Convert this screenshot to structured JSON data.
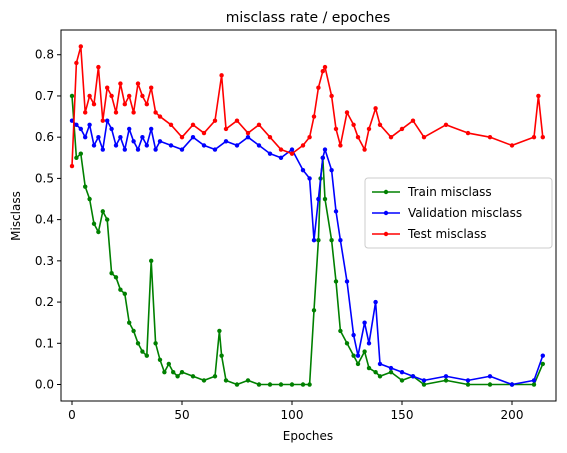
{
  "chart_data": {
    "type": "line",
    "title": "misclass rate / epoches",
    "xlabel": "Epoches",
    "ylabel": "Misclass",
    "xlim": [
      -5,
      220
    ],
    "ylim": [
      -0.04,
      0.86
    ],
    "xticks": [
      0,
      50,
      100,
      150,
      200
    ],
    "yticks": [
      0.0,
      0.1,
      0.2,
      0.3,
      0.4,
      0.5,
      0.6,
      0.7,
      0.8
    ],
    "xtick_labels": [
      "0",
      "50",
      "100",
      "150",
      "200"
    ],
    "ytick_labels": [
      "0.0",
      "0.1",
      "0.2",
      "0.3",
      "0.4",
      "0.5",
      "0.6",
      "0.7",
      "0.8"
    ],
    "legend_position": "center-right",
    "series": [
      {
        "name": "Train misclass",
        "color": "#008000",
        "x": [
          0,
          2,
          4,
          6,
          8,
          10,
          12,
          14,
          16,
          18,
          20,
          22,
          24,
          26,
          28,
          30,
          32,
          34,
          36,
          38,
          40,
          42,
          44,
          46,
          48,
          50,
          55,
          60,
          65,
          67,
          68,
          70,
          75,
          80,
          85,
          90,
          95,
          100,
          105,
          108,
          110,
          112,
          113,
          114,
          115,
          118,
          120,
          122,
          125,
          128,
          130,
          133,
          135,
          138,
          140,
          145,
          150,
          155,
          160,
          170,
          180,
          190,
          200,
          210,
          214
        ],
        "values": [
          0.7,
          0.55,
          0.56,
          0.48,
          0.45,
          0.39,
          0.37,
          0.42,
          0.4,
          0.27,
          0.26,
          0.23,
          0.22,
          0.15,
          0.13,
          0.1,
          0.08,
          0.07,
          0.3,
          0.1,
          0.06,
          0.03,
          0.05,
          0.03,
          0.02,
          0.03,
          0.02,
          0.01,
          0.02,
          0.13,
          0.07,
          0.01,
          0.0,
          0.01,
          0.0,
          0.0,
          0.0,
          0.0,
          0.0,
          0.0,
          0.18,
          0.35,
          0.5,
          0.55,
          0.45,
          0.35,
          0.25,
          0.13,
          0.1,
          0.07,
          0.05,
          0.08,
          0.04,
          0.03,
          0.02,
          0.03,
          0.01,
          0.02,
          0.0,
          0.01,
          0.0,
          0.0,
          0.0,
          0.0,
          0.05
        ]
      },
      {
        "name": "Validation misclass",
        "color": "#0000ff",
        "x": [
          0,
          2,
          4,
          6,
          8,
          10,
          12,
          14,
          16,
          18,
          20,
          22,
          24,
          26,
          28,
          30,
          32,
          34,
          36,
          38,
          40,
          45,
          50,
          55,
          60,
          65,
          70,
          75,
          80,
          85,
          90,
          95,
          100,
          105,
          108,
          110,
          112,
          114,
          115,
          118,
          120,
          122,
          125,
          128,
          130,
          133,
          135,
          138,
          140,
          145,
          150,
          155,
          160,
          170,
          180,
          190,
          200,
          210,
          214
        ],
        "values": [
          0.64,
          0.63,
          0.62,
          0.6,
          0.63,
          0.58,
          0.6,
          0.57,
          0.64,
          0.62,
          0.58,
          0.6,
          0.57,
          0.62,
          0.59,
          0.57,
          0.6,
          0.58,
          0.62,
          0.57,
          0.59,
          0.58,
          0.57,
          0.6,
          0.58,
          0.57,
          0.59,
          0.58,
          0.6,
          0.58,
          0.56,
          0.55,
          0.57,
          0.52,
          0.5,
          0.35,
          0.45,
          0.55,
          0.57,
          0.52,
          0.42,
          0.35,
          0.25,
          0.12,
          0.07,
          0.15,
          0.1,
          0.2,
          0.05,
          0.04,
          0.03,
          0.02,
          0.01,
          0.02,
          0.01,
          0.02,
          0.0,
          0.01,
          0.07
        ]
      },
      {
        "name": "Test misclass",
        "color": "#ff0000",
        "x": [
          0,
          2,
          4,
          6,
          8,
          10,
          12,
          14,
          16,
          18,
          20,
          22,
          24,
          26,
          28,
          30,
          32,
          34,
          36,
          38,
          40,
          45,
          50,
          55,
          60,
          65,
          68,
          70,
          75,
          80,
          85,
          90,
          95,
          100,
          105,
          108,
          110,
          112,
          114,
          115,
          118,
          120,
          122,
          125,
          128,
          130,
          133,
          135,
          138,
          140,
          145,
          150,
          155,
          160,
          170,
          180,
          190,
          200,
          210,
          212,
          214
        ],
        "values": [
          0.53,
          0.78,
          0.82,
          0.66,
          0.7,
          0.68,
          0.77,
          0.64,
          0.72,
          0.7,
          0.66,
          0.73,
          0.68,
          0.7,
          0.66,
          0.73,
          0.7,
          0.68,
          0.72,
          0.66,
          0.65,
          0.63,
          0.6,
          0.63,
          0.61,
          0.64,
          0.75,
          0.62,
          0.64,
          0.61,
          0.63,
          0.6,
          0.57,
          0.56,
          0.58,
          0.6,
          0.65,
          0.72,
          0.76,
          0.77,
          0.7,
          0.62,
          0.58,
          0.66,
          0.63,
          0.6,
          0.57,
          0.62,
          0.67,
          0.63,
          0.6,
          0.62,
          0.64,
          0.6,
          0.63,
          0.61,
          0.6,
          0.58,
          0.6,
          0.7,
          0.6
        ]
      }
    ]
  }
}
